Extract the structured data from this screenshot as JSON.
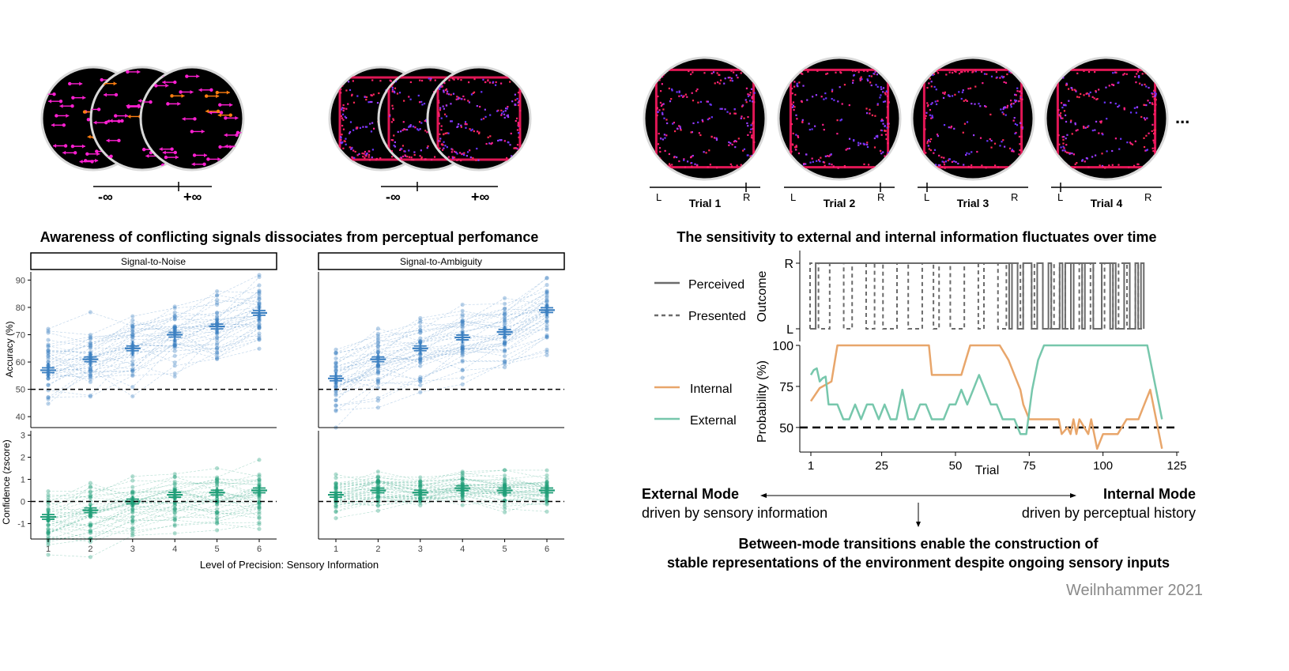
{
  "left": {
    "title": "Awareness of conflicting signals dissociates from perceptual perfomance",
    "stim_axis_left": {
      "min_label": "-∞",
      "max_label": "+∞"
    },
    "stim_axis_right": {
      "min_label": "-∞",
      "max_label": "+∞"
    },
    "panel_labels": [
      "Signal-to-Noise",
      "Signal-to-Ambiguity"
    ],
    "xlabel": "Level of Precision: Sensory Information",
    "accuracy_ylabel": "Accuracy (%)",
    "confidence_ylabel": "Confidence (zscore)",
    "x_ticks": [
      "1",
      "2",
      "3",
      "4",
      "5",
      "6"
    ],
    "accuracy_ticks": [
      "40",
      "50",
      "60",
      "70",
      "80",
      "90"
    ],
    "confidence_ticks": [
      "-1",
      "0",
      "1",
      "2",
      "3"
    ]
  },
  "right": {
    "title": "The sensitivity to external and internal information fluctuates over time",
    "trials": [
      {
        "label": "Trial 1",
        "left": "L",
        "right": "R"
      },
      {
        "label": "Trial 2",
        "left": "L",
        "right": "R"
      },
      {
        "label": "Trial 3",
        "left": "L",
        "right": "R"
      },
      {
        "label": "Trial 4",
        "left": "L",
        "right": "R"
      }
    ],
    "ellipsis": "...",
    "outcome_ylabel": "Outcome",
    "outcome_ticks": [
      "R",
      "L"
    ],
    "legend_outcome": [
      "Perceived",
      "Presented"
    ],
    "probability_ylabel": "Probability (%)",
    "probability_ticks": [
      "100",
      "75",
      "50"
    ],
    "legend_probability": [
      "Internal",
      "External"
    ],
    "trial_ticks": [
      "1",
      "25",
      "50",
      "75",
      "100",
      "125"
    ],
    "trial_xlabel": "Trial",
    "external_mode": {
      "title": "External Mode",
      "subtitle": "driven by sensory information"
    },
    "internal_mode": {
      "title": "Internal Mode",
      "subtitle": "driven by perceptual history"
    },
    "conclusion_line1": "Between-mode transitions enable the construction of",
    "conclusion_line2": "stable representations of the environment despite ongoing sensory inputs",
    "credit": "Weilnhammer 2021"
  },
  "colors": {
    "accuracy": "#3a7fc1",
    "confidence": "#1f9e77",
    "internal": "#e8a66b",
    "external": "#77c7ac",
    "magenta": "#ff1fd2",
    "orange": "#ff7f11"
  },
  "chart_data": [
    {
      "type": "scatter",
      "title": "Signal-to-Noise",
      "xlabel": "Level of Precision: Sensory Information",
      "ylabel": "Accuracy (%)",
      "x": [
        1,
        2,
        3,
        4,
        5,
        6
      ],
      "series": [
        {
          "values": [
            57,
            61,
            65,
            70,
            73,
            78
          ]
        }
      ],
      "ylim": [
        36,
        93
      ],
      "reference_line": 50
    },
    {
      "type": "scatter",
      "title": "Signal-to-Ambiguity",
      "xlabel": "Level of Precision: Sensory Information",
      "ylabel": "Accuracy (%)",
      "x": [
        1,
        2,
        3,
        4,
        5,
        6
      ],
      "series": [
        {
          "values": [
            54,
            61,
            65,
            69,
            71,
            79
          ]
        }
      ],
      "ylim": [
        36,
        93
      ],
      "reference_line": 50
    },
    {
      "type": "scatter",
      "title": "Signal-to-Noise",
      "xlabel": "Level of Precision: Sensory Information",
      "ylabel": "Confidence (zscore)",
      "x": [
        1,
        2,
        3,
        4,
        5,
        6
      ],
      "series": [
        {
          "values": [
            -0.7,
            -0.4,
            0.0,
            0.3,
            0.4,
            0.5
          ]
        }
      ],
      "ylim": [
        -1.7,
        3.2
      ],
      "reference_line": 0
    },
    {
      "type": "scatter",
      "title": "Signal-to-Ambiguity",
      "xlabel": "Level of Precision: Sensory Information",
      "ylabel": "Confidence (zscore)",
      "x": [
        1,
        2,
        3,
        4,
        5,
        6
      ],
      "series": [
        {
          "values": [
            0.3,
            0.5,
            0.4,
            0.6,
            0.5,
            0.5
          ]
        }
      ],
      "ylim": [
        -1.7,
        3.2
      ],
      "reference_line": 0
    },
    {
      "type": "line",
      "ylabel": "Probability (%)",
      "xlabel": "Trial",
      "xlim": [
        1,
        125
      ],
      "ylim": [
        35,
        100
      ],
      "reference_line": 50,
      "series": [
        {
          "name": "Internal",
          "x": [
            1,
            4,
            8,
            10,
            15,
            20,
            25,
            30,
            35,
            41,
            42,
            45,
            50,
            52,
            55,
            60,
            63,
            65,
            68,
            70,
            72,
            73,
            75,
            80,
            85,
            86,
            88,
            89,
            90,
            91,
            92,
            95,
            96,
            97,
            98,
            100,
            102,
            105,
            108,
            110,
            112,
            114,
            116,
            118,
            120
          ],
          "values": [
            66,
            74,
            78,
            100,
            100,
            100,
            100,
            100,
            100,
            100,
            82,
            82,
            82,
            82,
            100,
            100,
            100,
            100,
            91,
            82,
            73,
            64,
            55,
            55,
            55,
            46,
            50,
            46,
            55,
            46,
            55,
            46,
            55,
            46,
            37,
            46,
            46,
            46,
            55,
            55,
            55,
            64,
            73,
            55,
            37
          ]
        },
        {
          "name": "External",
          "x": [
            1,
            2,
            3,
            4,
            5,
            6,
            7,
            8,
            10,
            12,
            14,
            16,
            18,
            20,
            22,
            24,
            26,
            28,
            30,
            32,
            34,
            36,
            38,
            40,
            42,
            44,
            46,
            48,
            50,
            52,
            54,
            56,
            58,
            60,
            62,
            64,
            66,
            68,
            70,
            72,
            74,
            76,
            78,
            80,
            85,
            90,
            95,
            100,
            105,
            110,
            115,
            120
          ],
          "values": [
            82,
            85,
            86,
            78,
            80,
            81,
            64,
            64,
            64,
            55,
            55,
            64,
            55,
            64,
            64,
            55,
            64,
            55,
            55,
            73,
            55,
            55,
            64,
            64,
            55,
            55,
            55,
            64,
            64,
            73,
            64,
            73,
            82,
            73,
            64,
            64,
            55,
            55,
            55,
            46,
            46,
            73,
            91,
            100,
            100,
            100,
            100,
            100,
            100,
            100,
            100,
            55
          ]
        }
      ]
    }
  ]
}
